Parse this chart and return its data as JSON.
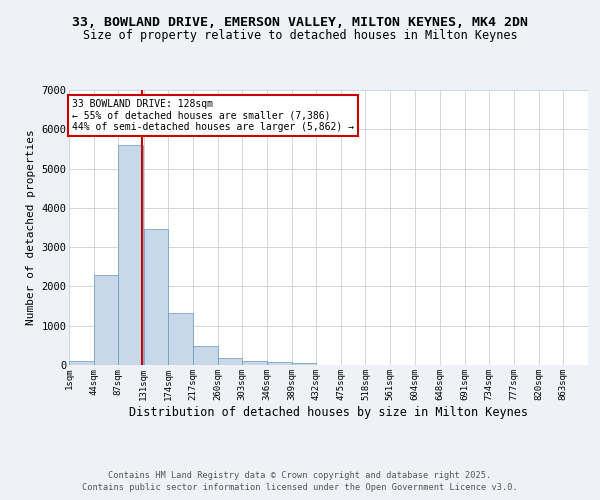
{
  "title_line1": "33, BOWLAND DRIVE, EMERSON VALLEY, MILTON KEYNES, MK4 2DN",
  "title_line2": "Size of property relative to detached houses in Milton Keynes",
  "xlabel": "Distribution of detached houses by size in Milton Keynes",
  "ylabel": "Number of detached properties",
  "bin_labels": [
    "1sqm",
    "44sqm",
    "87sqm",
    "131sqm",
    "174sqm",
    "217sqm",
    "260sqm",
    "303sqm",
    "346sqm",
    "389sqm",
    "432sqm",
    "475sqm",
    "518sqm",
    "561sqm",
    "604sqm",
    "648sqm",
    "691sqm",
    "734sqm",
    "777sqm",
    "820sqm",
    "863sqm"
  ],
  "bin_edges": [
    1,
    44,
    87,
    131,
    174,
    217,
    260,
    303,
    346,
    389,
    432,
    475,
    518,
    561,
    604,
    648,
    691,
    734,
    777,
    820,
    863,
    906
  ],
  "bar_heights": [
    100,
    2300,
    5600,
    3450,
    1330,
    490,
    175,
    90,
    65,
    40,
    10,
    5,
    2,
    1,
    1,
    0,
    0,
    0,
    0,
    0,
    0
  ],
  "bar_color": "#c8d8e8",
  "bar_edge_color": "#6699bb",
  "property_size": 128,
  "vline_color": "#cc0000",
  "annotation_text": "33 BOWLAND DRIVE: 128sqm\n← 55% of detached houses are smaller (7,386)\n44% of semi-detached houses are larger (5,862) →",
  "annotation_box_color": "#ffffff",
  "annotation_box_edge": "#cc0000",
  "ylim": [
    0,
    7000
  ],
  "yticks": [
    0,
    1000,
    2000,
    3000,
    4000,
    5000,
    6000,
    7000
  ],
  "footer_line1": "Contains HM Land Registry data © Crown copyright and database right 2025.",
  "footer_line2": "Contains public sector information licensed under the Open Government Licence v3.0.",
  "background_color": "#eef2f6",
  "plot_bg_color": "#ffffff",
  "grid_color": "#c8d0d8"
}
